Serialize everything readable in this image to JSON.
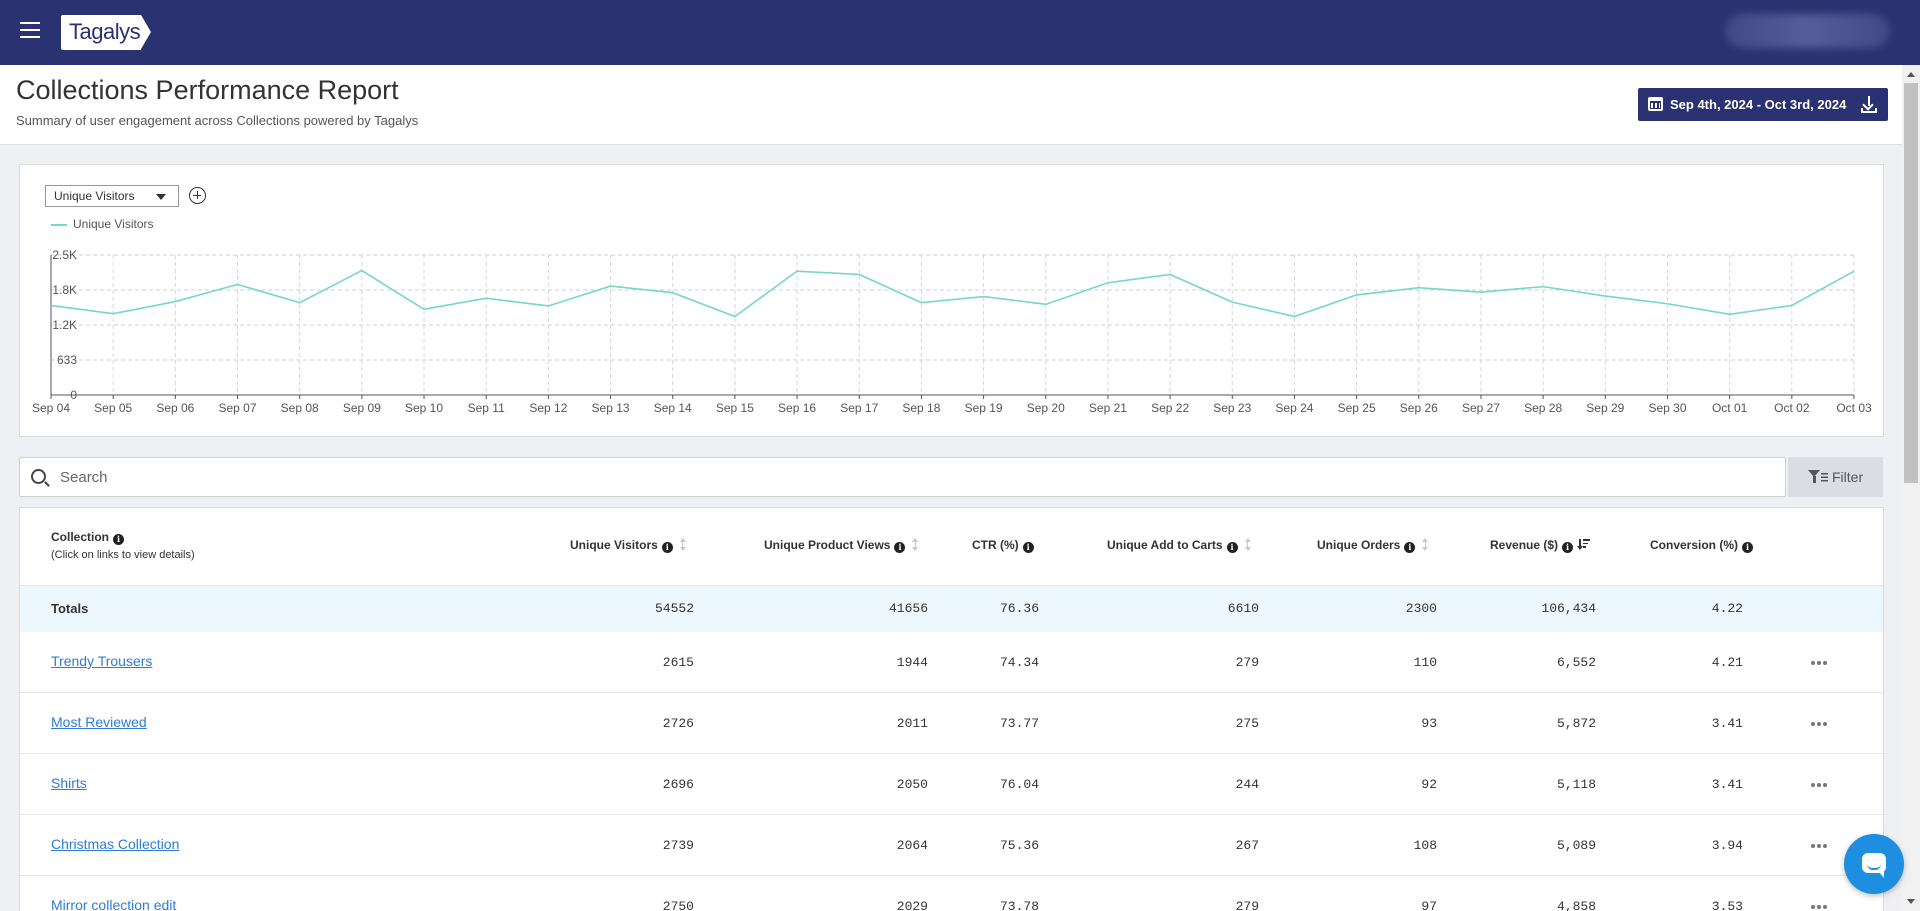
{
  "app": {
    "logo_text": "Tagalys"
  },
  "header": {
    "title": "Collections Performance Report",
    "subtitle": "Summary of user engagement across Collections powered by Tagalys",
    "date_range": "Sep 4th, 2024 - Oct 3rd, 2024"
  },
  "chart": {
    "selected_metric": "Unique Visitors",
    "legend_label": "Unique Visitors",
    "line_color": "#76d6c8"
  },
  "chart_data": {
    "type": "line",
    "x": [
      "Sep 04",
      "Sep 05",
      "Sep 06",
      "Sep 07",
      "Sep 08",
      "Sep 09",
      "Sep 10",
      "Sep 11",
      "Sep 12",
      "Sep 13",
      "Sep 14",
      "Sep 15",
      "Sep 16",
      "Sep 17",
      "Sep 18",
      "Sep 19",
      "Sep 20",
      "Sep 21",
      "Sep 22",
      "Sep 23",
      "Sep 24",
      "Sep 25",
      "Sep 26",
      "Sep 27",
      "Sep 28",
      "Sep 29",
      "Sep 30",
      "Oct 01",
      "Oct 02",
      "Oct 03"
    ],
    "series": [
      {
        "name": "Unique Visitors",
        "values": [
          1620,
          1470,
          1690,
          2000,
          1670,
          2250,
          1550,
          1750,
          1610,
          1970,
          1850,
          1420,
          2240,
          2180,
          1670,
          1780,
          1640,
          2030,
          2180,
          1680,
          1420,
          1810,
          1940,
          1860,
          1960,
          1790,
          1650,
          1460,
          1620,
          2240
        ]
      }
    ],
    "yticks": [
      "0",
      "633",
      "1.2K",
      "1.8K",
      "2.5K"
    ],
    "ylim": [
      0,
      2532
    ]
  },
  "search": {
    "placeholder": "Search"
  },
  "filter": {
    "label": "Filter"
  },
  "table": {
    "headers": {
      "collection": "Collection",
      "collection_sub": "(Click on links to view details)",
      "unique_visitors": "Unique Visitors",
      "unique_product_views": "Unique Product Views",
      "ctr": "CTR (%)",
      "unique_add_to_carts": "Unique Add to Carts",
      "unique_orders": "Unique Orders",
      "revenue": "Revenue ($)",
      "conversion": "Conversion (%)"
    },
    "totals": {
      "label": "Totals",
      "unique_visitors": "54552",
      "unique_product_views": "41656",
      "ctr": "76.36",
      "unique_add_to_carts": "6610",
      "unique_orders": "2300",
      "revenue": "106,434",
      "conversion": "4.22"
    },
    "rows": [
      {
        "name": "Trendy Trousers",
        "uv": "2615",
        "upv": "1944",
        "ctr": "74.34",
        "uatc": "279",
        "uo": "110",
        "rev": "6,552",
        "conv": "4.21"
      },
      {
        "name": "Most Reviewed",
        "uv": "2726",
        "upv": "2011",
        "ctr": "73.77",
        "uatc": "275",
        "uo": "93",
        "rev": "5,872",
        "conv": "3.41"
      },
      {
        "name": "Shirts",
        "uv": "2696",
        "upv": "2050",
        "ctr": "76.04",
        "uatc": "244",
        "uo": "92",
        "rev": "5,118",
        "conv": "3.41"
      },
      {
        "name": "Christmas Collection",
        "uv": "2739",
        "upv": "2064",
        "ctr": "75.36",
        "uatc": "267",
        "uo": "108",
        "rev": "5,089",
        "conv": "3.94"
      },
      {
        "name": "Mirror collection edit",
        "uv": "2750",
        "upv": "2029",
        "ctr": "73.78",
        "uatc": "279",
        "uo": "97",
        "rev": "4,858",
        "conv": "3.53"
      }
    ]
  }
}
